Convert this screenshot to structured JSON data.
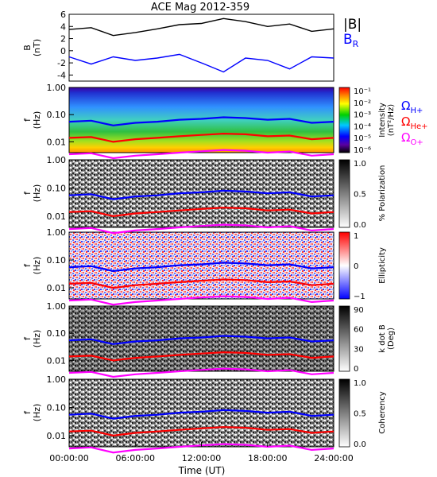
{
  "figure": {
    "title": "ACE Mag 2012-359",
    "xlabel": "Time (UT)",
    "x_ticks": [
      "00:00:00",
      "06:00:00",
      "12:00:00",
      "18:00:00",
      "24:00:00"
    ]
  },
  "legend": {
    "b_mag": "|B|",
    "b_r_main": "B",
    "b_r_sub": "R",
    "omega_h": "Ω",
    "omega_h_sub": "H+",
    "omega_he": "Ω",
    "omega_he_sub": "He+",
    "omega_o": "Ω",
    "omega_o_sub": "O+"
  },
  "colors": {
    "b_mag": "#000000",
    "b_r": "#0000ff",
    "omega_h": "#0000ff",
    "omega_he": "#ff0000",
    "omega_o": "#ff00ff"
  },
  "chart_data": [
    {
      "type": "line",
      "panel": "field",
      "ylabel": "B",
      "yunit": "(nT)",
      "ylim": [
        -5,
        6
      ],
      "y_ticks": [
        "-4",
        "-2",
        "0",
        "2",
        "4",
        "6"
      ],
      "x_hours": [
        0,
        2,
        4,
        6,
        8,
        10,
        12,
        14,
        16,
        18,
        20,
        22,
        24
      ],
      "series": [
        {
          "name": "|B|",
          "values": [
            3.5,
            3.8,
            2.5,
            3.0,
            3.6,
            4.3,
            4.5,
            5.3,
            4.8,
            4.0,
            4.4,
            3.2,
            3.6
          ]
        },
        {
          "name": "B_R",
          "values": [
            -1.0,
            -2.2,
            -1.0,
            -1.6,
            -1.2,
            -0.6,
            -2.0,
            -3.5,
            -1.2,
            -1.6,
            -3.0,
            -1.0,
            -1.2
          ]
        }
      ]
    },
    {
      "type": "heatmap",
      "panel": "intensity",
      "ylabel": "f",
      "yunit": "(Hz)",
      "colorbar_title": "Intensity",
      "colorbar_unit": "(nT²/Hz)",
      "colorbar_ticks": [
        "10⁻¹",
        "10⁻²",
        "10⁻³",
        "10⁻⁴",
        "10⁻⁵",
        "10⁻⁶"
      ],
      "colormap": "rainbow"
    },
    {
      "type": "heatmap",
      "panel": "polarization",
      "ylabel": "f",
      "yunit": "(Hz)",
      "colorbar_title": "% Polarization",
      "colorbar_unit": "",
      "colorbar_ticks": [
        "1.0",
        "0.5",
        "0.0"
      ],
      "colormap": "gray"
    },
    {
      "type": "heatmap",
      "panel": "ellipticity",
      "ylabel": "f",
      "yunit": "(Hz)",
      "colorbar_title": "Ellipticity",
      "colorbar_unit": "",
      "colorbar_ticks": [
        "1",
        "0",
        "−1"
      ],
      "colormap": "bluewhitered"
    },
    {
      "type": "heatmap",
      "panel": "kdotb",
      "ylabel": "f",
      "yunit": "(Hz)",
      "colorbar_title": "k dot B",
      "colorbar_unit": "(Deg)",
      "colorbar_ticks": [
        "90",
        "60",
        "30",
        "0"
      ],
      "colormap": "gray"
    },
    {
      "type": "heatmap",
      "panel": "coherency",
      "ylabel": "f",
      "yunit": "(Hz)",
      "colorbar_title": "Coherency",
      "colorbar_unit": "",
      "colorbar_ticks": [
        "1.0",
        "0.5",
        "0.0"
      ],
      "colormap": "gray"
    },
    {
      "type": "line",
      "panel": "gyrofrequency overlays (all spectral panels)",
      "ylim_log_hz": [
        0.004,
        1.0
      ],
      "y_ticks": [
        "1.00",
        "0.10",
        "0.01"
      ],
      "x_hours": [
        0,
        2,
        4,
        6,
        8,
        10,
        12,
        14,
        16,
        18,
        20,
        22,
        24
      ],
      "series": [
        {
          "name": "Ω H+",
          "values": [
            0.055,
            0.06,
            0.04,
            0.05,
            0.055,
            0.065,
            0.07,
            0.08,
            0.075,
            0.065,
            0.07,
            0.05,
            0.055
          ]
        },
        {
          "name": "Ω He+",
          "values": [
            0.014,
            0.015,
            0.01,
            0.0125,
            0.014,
            0.016,
            0.018,
            0.02,
            0.019,
            0.016,
            0.017,
            0.0125,
            0.014
          ]
        },
        {
          "name": "Ω O+",
          "values": [
            0.0035,
            0.0038,
            0.0025,
            0.0031,
            0.0035,
            0.004,
            0.0045,
            0.005,
            0.0047,
            0.004,
            0.0044,
            0.0031,
            0.0035
          ]
        }
      ]
    }
  ]
}
